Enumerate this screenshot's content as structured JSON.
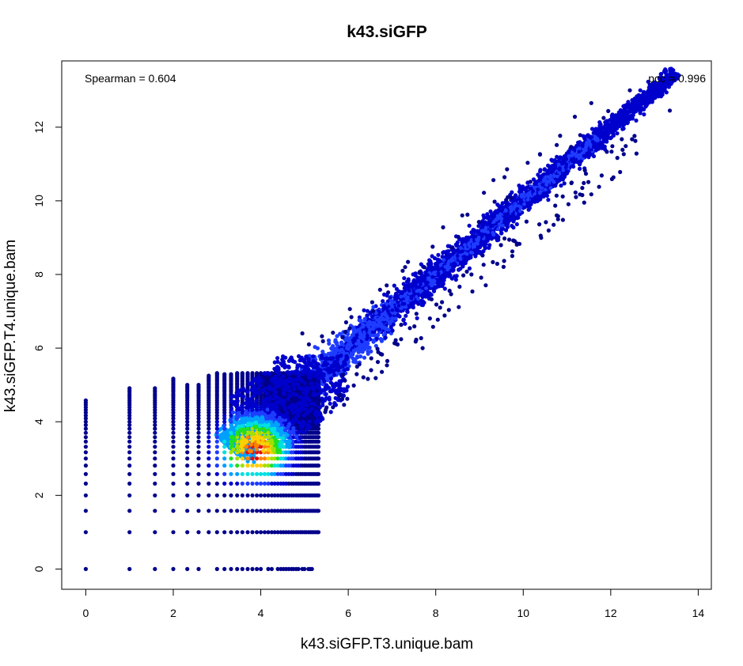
{
  "chart_data": {
    "type": "scatter",
    "title": "k43.siGFP",
    "xlabel": "k43.siGFP.T3.unique.bam",
    "ylabel": "k43.siGFP.T4.unique.bam",
    "xlim": [
      -0.55,
      14.3
    ],
    "ylim": [
      -0.55,
      13.8
    ],
    "xticks": [
      0,
      2,
      4,
      6,
      8,
      10,
      12,
      14
    ],
    "yticks": [
      0,
      2,
      4,
      6,
      8,
      10,
      12
    ],
    "xtick_labels": [
      "0",
      "2",
      "4",
      "6",
      "8",
      "10",
      "12",
      "14"
    ],
    "ytick_labels": [
      "0",
      "2",
      "4",
      "6",
      "8",
      "10",
      "12"
    ],
    "grid": false,
    "annotations": [
      {
        "text": "Spearman =  0.604",
        "position": "top-left"
      },
      {
        "text": "pcc =  0.996",
        "position": "top-right"
      }
    ],
    "density_colors": [
      "#00008b",
      "#0000cd",
      "#1e3cff",
      "#00a0ff",
      "#00e0e0",
      "#20e020",
      "#a0e000",
      "#ffd000",
      "#ff8000",
      "#e01010"
    ],
    "x_levels": [
      0,
      1,
      1.58,
      2,
      2.32,
      2.58,
      2.81,
      3,
      3.17,
      3.32,
      3.46,
      3.58,
      3.7,
      3.81,
      3.91,
      4,
      4.09,
      4.17,
      4.25,
      4.32,
      4.39,
      4.46,
      4.52,
      4.58,
      4.64,
      4.7,
      4.75,
      4.81,
      4.86,
      4.91,
      4.95,
      5,
      5.04,
      5.09,
      5.13,
      5.17,
      5.21,
      5.25,
      5.29,
      5.32
    ],
    "y_levels": [
      0,
      1,
      1.58,
      2,
      2.32,
      2.58,
      2.81,
      3,
      3.17,
      3.32,
      3.46,
      3.58,
      3.7,
      3.81,
      3.91,
      4,
      4.09,
      4.17,
      4.25,
      4.32,
      4.39,
      4.46,
      4.52,
      4.58,
      4.64,
      4.7,
      4.75,
      4.81,
      4.86,
      4.91,
      4.95,
      5,
      5.04,
      5.09,
      5.13,
      5.17,
      5.21,
      5.25,
      5.29,
      5.32
    ],
    "max_x_for_row": [
      {
        "y": 0,
        "max_x": 5.2
      },
      {
        "y": 1,
        "max_x": 5.35
      },
      {
        "y": 1.58,
        "max_x": 5.35
      },
      {
        "y": 2,
        "max_x": 5.35
      },
      {
        "y": 2.32,
        "max_x": 5.6
      },
      {
        "y": 2.58,
        "max_x": 5.6
      },
      {
        "y": 2.81,
        "max_x": 5.6
      },
      {
        "y": 3,
        "max_x": 5.7
      },
      {
        "y": 3.17,
        "max_x": 5.7
      },
      {
        "y": 3.32,
        "max_x": 5.7
      }
    ],
    "max_y_for_col": [
      {
        "x": 0,
        "max_y": 4.58
      },
      {
        "x": 1,
        "max_y": 4.91
      },
      {
        "x": 1.58,
        "max_y": 4.91
      },
      {
        "x": 2,
        "max_y": 5.2
      },
      {
        "x": 2.32,
        "max_y": 5.0
      },
      {
        "x": 2.58,
        "max_y": 5.0
      },
      {
        "x": 2.81,
        "max_y": 5.25
      },
      {
        "x": 3,
        "max_y": 5.4
      },
      {
        "x": 3.17,
        "max_y": 5.3
      },
      {
        "x": 3.32,
        "max_y": 5.3
      }
    ],
    "diagonal_band": {
      "x_from": 3.3,
      "x_to": 13.5,
      "slope": 1.0,
      "intercept": 0.0
    },
    "sample_points": [
      {
        "x": 13.45,
        "y": 13.3
      },
      {
        "x": 13.35,
        "y": 12.45
      },
      {
        "x": 7.3,
        "y": 8.2
      },
      {
        "x": 7.7,
        "y": 6.0
      },
      {
        "x": 8.1,
        "y": 7.1
      },
      {
        "x": 5.95,
        "y": 6.7
      },
      {
        "x": 5.1,
        "y": 6.1
      },
      {
        "x": 4.95,
        "y": 6.4
      }
    ]
  }
}
